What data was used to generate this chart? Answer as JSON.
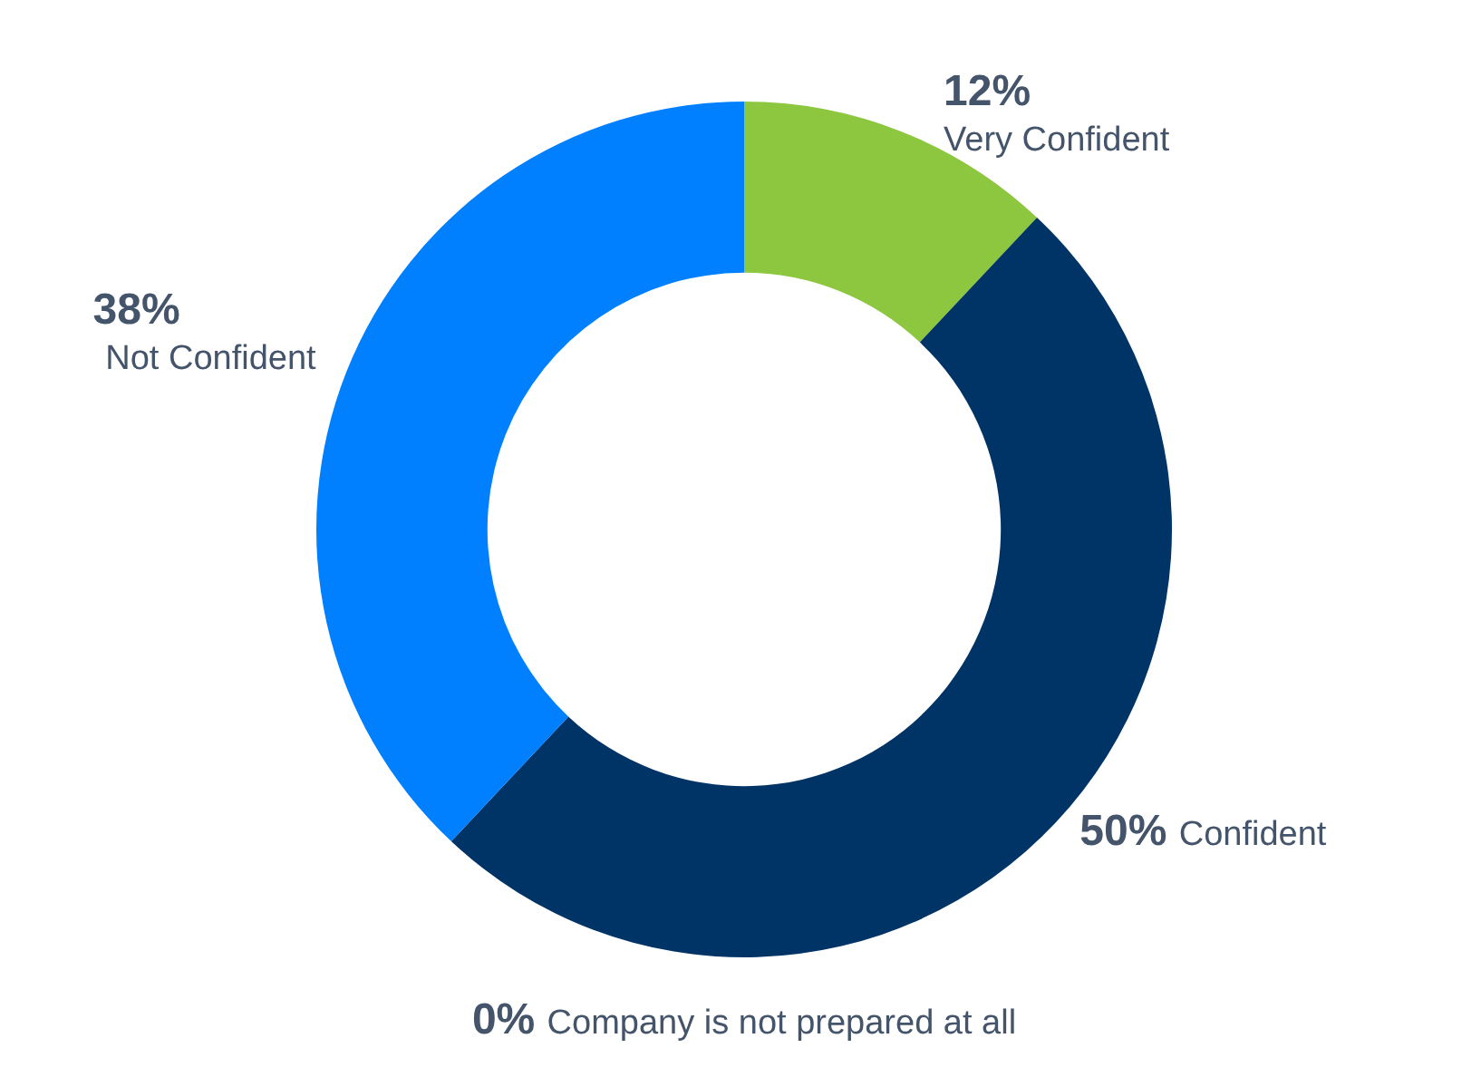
{
  "chart_data": {
    "type": "donut",
    "categories": [
      "Very Confident",
      "Confident",
      "Company is not prepared at all",
      "Not Confident"
    ],
    "values": [
      12,
      50,
      0,
      38
    ],
    "colors": [
      "#8dc63f",
      "#003366",
      "#999999",
      "#0080ff"
    ],
    "value_labels": [
      "12%",
      "50%",
      "0%",
      "38%"
    ],
    "legend": false
  }
}
